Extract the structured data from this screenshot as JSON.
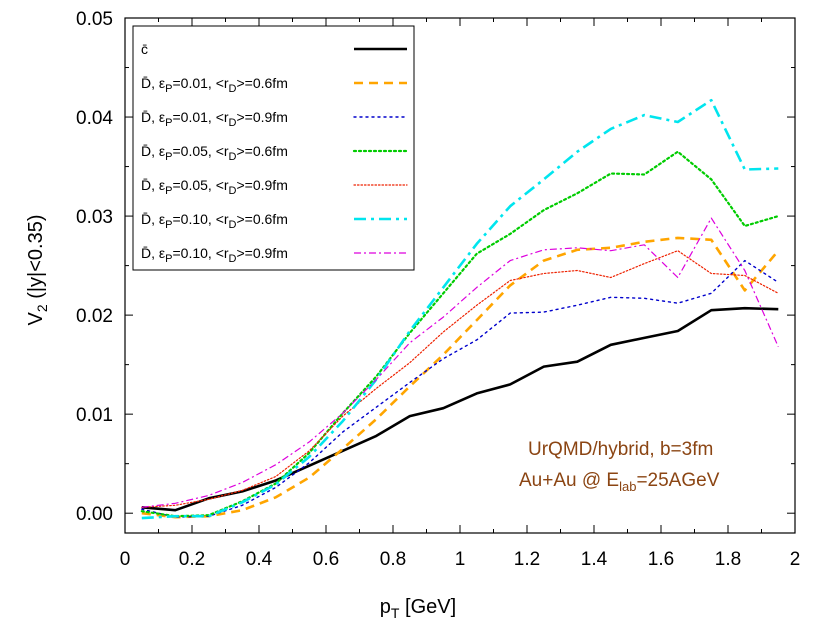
{
  "chart_data": {
    "type": "line",
    "xlabel": "p_T [GeV]",
    "ylabel": "V_2 (|y|<0.35)",
    "xlim": [
      0,
      2
    ],
    "ylim": [
      -0.002,
      0.05
    ],
    "x_ticks": [
      "0",
      "0.2",
      "0.4",
      "0.6",
      "0.8",
      "1",
      "1.2",
      "1.4",
      "1.6",
      "1.8",
      "2"
    ],
    "y_ticks": [
      "0.00",
      "0.01",
      "0.02",
      "0.03",
      "0.04",
      "0.05"
    ],
    "legend_position": "top-left",
    "annotations": [
      "UrQMD/hybrid, b=3fm",
      "Au+Au @ E_lab=25AGeV"
    ],
    "x": [
      0.05,
      0.15,
      0.25,
      0.35,
      0.45,
      0.55,
      0.65,
      0.75,
      0.85,
      0.95,
      1.05,
      1.15,
      1.25,
      1.35,
      1.45,
      1.55,
      1.65,
      1.75,
      1.85,
      1.95
    ],
    "series": [
      {
        "name": "c̄",
        "color": "#000000",
        "dash": "solid",
        "values": [
          0.0006,
          0.0003,
          0.0015,
          0.0022,
          0.0033,
          0.0048,
          0.0063,
          0.0078,
          0.0098,
          0.0106,
          0.0121,
          0.013,
          0.0148,
          0.0153,
          0.017,
          0.0177,
          0.0184,
          0.0205,
          0.0207,
          0.0206
        ]
      },
      {
        "name": "D̄, ε_P=0.01, <r_D>=0.6fm",
        "color": "#ffa500",
        "dash": "dash",
        "values": [
          0.0,
          -0.0004,
          -0.0003,
          0.0003,
          0.0016,
          0.0036,
          0.0065,
          0.0095,
          0.0128,
          0.016,
          0.0195,
          0.023,
          0.0255,
          0.0266,
          0.0268,
          0.0274,
          0.0278,
          0.0276,
          0.0225,
          0.0265
        ]
      },
      {
        "name": "D̄, ε_P=0.01, <r_D>=0.9fm",
        "color": "#0000cc",
        "dash": "dot",
        "values": [
          0.0004,
          -0.0004,
          -0.0003,
          0.0008,
          0.0026,
          0.0051,
          0.0082,
          0.0107,
          0.0132,
          0.0156,
          0.0175,
          0.0202,
          0.0203,
          0.021,
          0.0218,
          0.0217,
          0.0212,
          0.0222,
          0.0255,
          0.0233
        ]
      },
      {
        "name": "D̄, ε_P=0.05, <r_D>=0.6fm",
        "color": "#00cc00",
        "dash": "dense-dot",
        "values": [
          0.0002,
          -0.0003,
          -0.0002,
          0.0012,
          0.003,
          0.0061,
          0.0101,
          0.0138,
          0.0182,
          0.0222,
          0.0262,
          0.0282,
          0.0306,
          0.0323,
          0.0343,
          0.0342,
          0.0365,
          0.0337,
          0.029,
          0.03
        ]
      },
      {
        "name": "D̄, ε_P=0.05, <r_D>=0.9fm",
        "color": "#ee2200",
        "dash": "fine-dot",
        "values": [
          0.0006,
          0.0008,
          0.0014,
          0.0023,
          0.0037,
          0.0063,
          0.0098,
          0.0126,
          0.0152,
          0.0183,
          0.021,
          0.0235,
          0.0242,
          0.0245,
          0.0238,
          0.0252,
          0.0265,
          0.0242,
          0.024,
          0.0222
        ]
      },
      {
        "name": "D̄, ε_P=0.10, <r_D>=0.6fm",
        "color": "#00e5ee",
        "dash": "dash-dot",
        "values": [
          -0.0005,
          -0.0003,
          -0.0003,
          0.0011,
          0.0029,
          0.0057,
          0.0093,
          0.0135,
          0.0184,
          0.0228,
          0.0272,
          0.031,
          0.0337,
          0.0365,
          0.0388,
          0.0402,
          0.0395,
          0.0417,
          0.0347,
          0.0348
        ]
      },
      {
        "name": "D̄, ε_P=0.10, <r_D>=0.9fm",
        "color": "#dd00dd",
        "dash": "dash-dot-fine",
        "values": [
          0.0006,
          0.001,
          0.0018,
          0.0031,
          0.0049,
          0.0072,
          0.0101,
          0.0135,
          0.0172,
          0.0198,
          0.0228,
          0.0255,
          0.0266,
          0.0268,
          0.0265,
          0.0271,
          0.0238,
          0.0298,
          0.0245,
          0.0168
        ]
      }
    ]
  }
}
